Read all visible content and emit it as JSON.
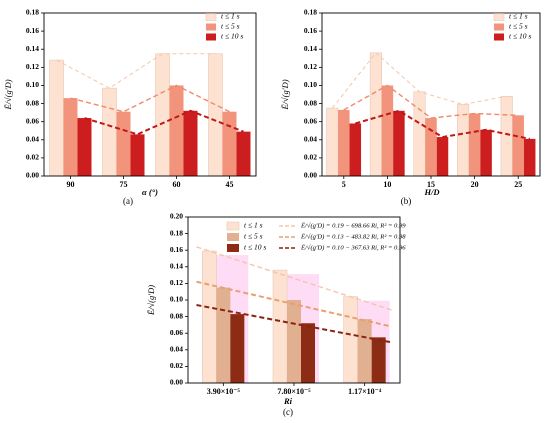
{
  "colors": {
    "s1": "#fde2d2",
    "s5": "#f2947c",
    "s10": "#cc1e1e",
    "c_s5": "#e0b090",
    "c_s10": "#8c2c14",
    "trend1": "#f4c6a8",
    "trend5": "#f08a6c",
    "trend10": "#c01818",
    "c_trend5": "#e8a070",
    "c_trend10": "#8a2410",
    "pink_shadow": "#ff9ae6"
  },
  "chart_data": [
    {
      "id": "a",
      "type": "bar",
      "caption": "(a)",
      "xlabel": "α (°)",
      "ylabel": "Ē/√(g'D)",
      "categories": [
        "90",
        "75",
        "60",
        "45"
      ],
      "ylim": [
        0,
        0.18
      ],
      "yticks": [
        "0.00",
        "0.02",
        "0.04",
        "0.06",
        "0.08",
        "0.10",
        "0.12",
        "0.14",
        "0.16",
        "0.18"
      ],
      "legend_position": "top-right",
      "series": [
        {
          "name": "t ≤ 1 s",
          "values": [
            0.128,
            0.097,
            0.135,
            0.135
          ]
        },
        {
          "name": "t ≤ 5 s",
          "values": [
            0.086,
            0.071,
            0.1,
            0.071
          ]
        },
        {
          "name": "t ≤ 10 s",
          "values": [
            0.064,
            0.046,
            0.072,
            0.049
          ]
        }
      ]
    },
    {
      "id": "b",
      "type": "bar",
      "caption": "(b)",
      "xlabel": "H/D",
      "ylabel": "Ē/√(g'D)",
      "categories": [
        "5",
        "10",
        "15",
        "20",
        "25"
      ],
      "ylim": [
        0,
        0.18
      ],
      "yticks": [
        "0.00",
        "0.02",
        "0.04",
        "0.06",
        "0.08",
        "0.10",
        "0.12",
        "0.14",
        "0.16",
        "0.18"
      ],
      "legend_position": "top-right",
      "series": [
        {
          "name": "t ≤ 1 s",
          "values": [
            0.075,
            0.136,
            0.093,
            0.079,
            0.088
          ]
        },
        {
          "name": "t ≤ 5 s",
          "values": [
            0.073,
            0.1,
            0.064,
            0.069,
            0.067
          ]
        },
        {
          "name": "t ≤ 10 s",
          "values": [
            0.058,
            0.072,
            0.043,
            0.051,
            0.041
          ]
        }
      ]
    },
    {
      "id": "c",
      "type": "bar",
      "caption": "(c)",
      "xlabel": "Ri",
      "ylabel": "Ē/√(g'D)",
      "categories": [
        "3.90×10⁻⁵",
        "7.80×10⁻⁵",
        "1.17×10⁻⁴"
      ],
      "ylim": [
        0,
        0.2
      ],
      "yticks": [
        "0.00",
        "0.02",
        "0.04",
        "0.06",
        "0.08",
        "0.10",
        "0.12",
        "0.14",
        "0.16",
        "0.18",
        "0.20"
      ],
      "legend_position": "top",
      "series": [
        {
          "name": "t ≤ 1 s",
          "values": [
            0.159,
            0.136,
            0.104
          ]
        },
        {
          "name": "t ≤ 5 s",
          "values": [
            0.115,
            0.1,
            0.077
          ]
        },
        {
          "name": "t ≤ 10 s",
          "values": [
            0.083,
            0.072,
            0.055
          ]
        }
      ],
      "fits": [
        {
          "label": "Ē/√(g'D) = 0.19 − 698.66 Ri, R² = 0.99",
          "start": [
            0.16,
            0.164
          ],
          "end": [
            3.84,
            0.088
          ]
        },
        {
          "label": "Ē/√(g'D) = 0.13 − 483.82 Ri, R² = 0.98",
          "start": [
            0.16,
            0.122
          ],
          "end": [
            3.84,
            0.068
          ]
        },
        {
          "label": "Ē/√(g'D) = 0.10 − 367.63 Ri, R² = 0.96",
          "start": [
            0.16,
            0.094
          ],
          "end": [
            3.84,
            0.049
          ]
        }
      ]
    }
  ]
}
